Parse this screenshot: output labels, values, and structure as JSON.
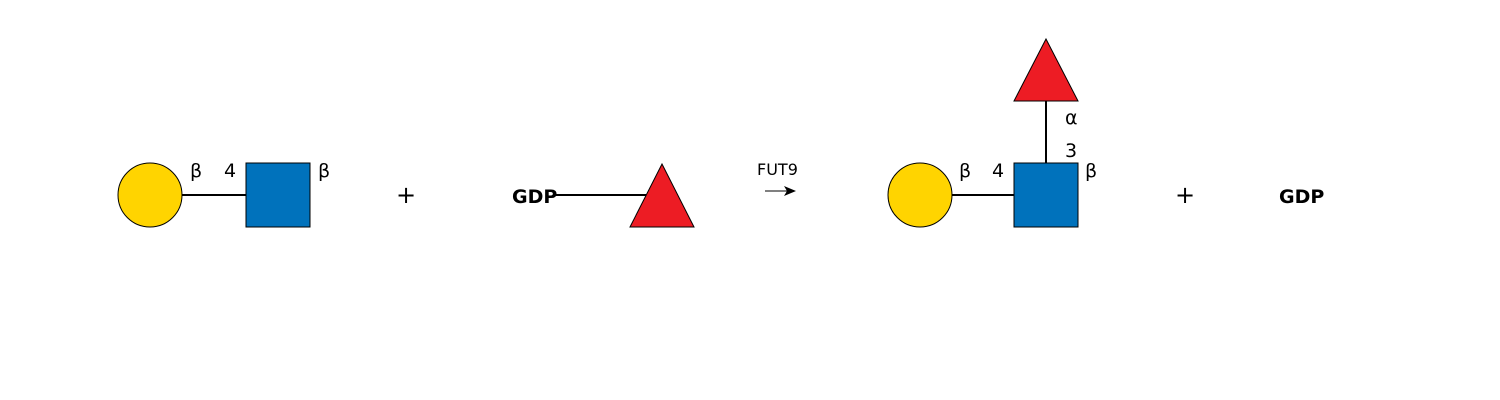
{
  "colors": {
    "galactose_yellow": "#FFD400",
    "glcnac_blue": "#0072BC",
    "fucose_red": "#ED1C24"
  },
  "substrate1": {
    "shapes": [
      "galactose-circle",
      "glcnac-square"
    ],
    "bond_anomer": "β",
    "bond_position": "4",
    "reducing_anomer": "β"
  },
  "plus1": "+",
  "donor": {
    "label": "GDP",
    "shapes": [
      "fucose-triangle"
    ]
  },
  "reaction": {
    "enzyme": "FUT9",
    "arrow": "→"
  },
  "product": {
    "shapes": [
      "galactose-circle",
      "glcnac-square",
      "fucose-triangle"
    ],
    "gal_anomer": "β",
    "gal_position": "4",
    "reducing_anomer": "β",
    "fuc_anomer": "α",
    "fuc_position": "3"
  },
  "plus2": "+",
  "byproduct": {
    "label": "GDP"
  }
}
